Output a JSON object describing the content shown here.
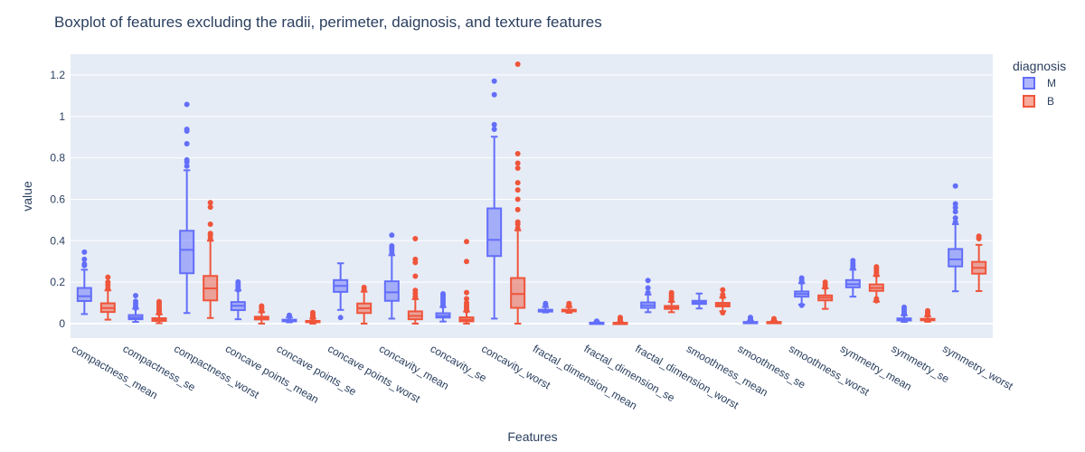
{
  "chart_data": {
    "type": "box",
    "title": "Boxplot of features excluding the radii, perimeter, daignosis, and texture features",
    "xlabel": "Features",
    "ylabel": "value",
    "ylim": [
      -0.07,
      1.3
    ],
    "yticks": [
      0,
      0.2,
      0.4,
      0.6,
      0.8,
      1,
      1.2
    ],
    "ytick_labels": [
      "0",
      "0.2",
      "0.4",
      "0.6",
      "0.8",
      "1",
      "1.2"
    ],
    "grid": true,
    "legend": {
      "title": "diagnosis",
      "position": "top-right"
    },
    "categories": [
      "compactness_mean",
      "compactness_se",
      "compactness_worst",
      "concave points_mean",
      "concave points_se",
      "concave points_worst",
      "concavity_mean",
      "concavity_se",
      "concavity_worst",
      "fractal_dimension_mean",
      "fractal_dimension_se",
      "fractal_dimension_worst",
      "smoothness_mean",
      "smoothness_se",
      "smoothness_worst",
      "symmetry_mean",
      "symmetry_se",
      "symmetry_worst"
    ],
    "series": [
      {
        "name": "M",
        "color": "#636efa",
        "boxes": [
          {
            "min": 0.046,
            "q1": 0.109,
            "median": 0.132,
            "q3": 0.172,
            "max": 0.26,
            "outliers": [
              0.28,
              0.287,
              0.31,
              0.345
            ]
          },
          {
            "min": 0.008,
            "q1": 0.021,
            "median": 0.029,
            "q3": 0.041,
            "max": 0.072,
            "outliers": [
              0.075,
              0.082,
              0.095,
              0.107,
              0.135
            ]
          },
          {
            "min": 0.051,
            "q1": 0.243,
            "median": 0.356,
            "q3": 0.448,
            "max": 0.74,
            "outliers": [
              0.76,
              0.78,
              0.79,
              0.868,
              0.929,
              0.938,
              1.058
            ]
          },
          {
            "min": 0.021,
            "q1": 0.065,
            "median": 0.086,
            "q3": 0.104,
            "max": 0.16,
            "outliers": [
              0.163,
              0.17,
              0.18,
              0.19,
              0.201
            ]
          },
          {
            "min": 0.006,
            "q1": 0.011,
            "median": 0.015,
            "q3": 0.019,
            "max": 0.03,
            "outliers": [
              0.035,
              0.04
            ]
          },
          {
            "min": 0.066,
            "q1": 0.153,
            "median": 0.182,
            "q3": 0.21,
            "max": 0.291,
            "outliers": [
              0.029
            ]
          },
          {
            "min": 0.024,
            "q1": 0.11,
            "median": 0.151,
            "q3": 0.204,
            "max": 0.33,
            "outliers": [
              0.34,
              0.355,
              0.365,
              0.375,
              0.427
            ]
          },
          {
            "min": 0.01,
            "q1": 0.029,
            "median": 0.037,
            "q3": 0.05,
            "max": 0.08,
            "outliers": [
              0.085,
              0.095,
              0.105,
              0.115,
              0.125,
              0.135,
              0.144
            ]
          },
          {
            "min": 0.024,
            "q1": 0.326,
            "median": 0.404,
            "q3": 0.556,
            "max": 0.902,
            "outliers": [
              0.938,
              0.96,
              1.105,
              1.17
            ]
          },
          {
            "min": 0.054,
            "q1": 0.058,
            "median": 0.062,
            "q3": 0.067,
            "max": 0.08,
            "outliers": [
              0.09,
              0.097
            ]
          },
          {
            "min": 0.001,
            "q1": 0.0025,
            "median": 0.0035,
            "q3": 0.0045,
            "max": 0.008,
            "outliers": [
              0.01,
              0.012
            ]
          },
          {
            "min": 0.055,
            "q1": 0.076,
            "median": 0.088,
            "q3": 0.102,
            "max": 0.14,
            "outliers": [
              0.15,
              0.172,
              0.208
            ]
          },
          {
            "min": 0.073,
            "q1": 0.095,
            "median": 0.102,
            "q3": 0.11,
            "max": 0.145,
            "outliers": []
          },
          {
            "min": 0.002,
            "q1": 0.005,
            "median": 0.006,
            "q3": 0.008,
            "max": 0.014,
            "outliers": [
              0.016,
              0.02,
              0.025,
              0.03
            ]
          },
          {
            "min": 0.092,
            "q1": 0.13,
            "median": 0.143,
            "q3": 0.155,
            "max": 0.195,
            "outliers": [
              0.088,
              0.2,
              0.21,
              0.22
            ]
          },
          {
            "min": 0.13,
            "q1": 0.175,
            "median": 0.19,
            "q3": 0.21,
            "max": 0.26,
            "outliers": [
              0.27,
              0.28,
              0.29,
              0.304
            ]
          },
          {
            "min": 0.008,
            "q1": 0.015,
            "median": 0.019,
            "q3": 0.025,
            "max": 0.04,
            "outliers": [
              0.045,
              0.05,
              0.06,
              0.07,
              0.079
            ]
          },
          {
            "min": 0.156,
            "q1": 0.276,
            "median": 0.31,
            "q3": 0.36,
            "max": 0.48,
            "outliers": [
              0.49,
              0.51,
              0.54,
              0.56,
              0.578,
              0.664
            ]
          }
        ]
      },
      {
        "name": "B",
        "color": "#ef553b",
        "boxes": [
          {
            "min": 0.019,
            "q1": 0.056,
            "median": 0.075,
            "q3": 0.098,
            "max": 0.16,
            "outliers": [
              0.17,
              0.185,
              0.2,
              0.224
            ]
          },
          {
            "min": 0.002,
            "q1": 0.013,
            "median": 0.02,
            "q3": 0.026,
            "max": 0.045,
            "outliers": [
              0.05,
              0.058,
              0.065,
              0.072,
              0.08,
              0.09,
              0.1,
              0.106
            ]
          },
          {
            "min": 0.027,
            "q1": 0.112,
            "median": 0.17,
            "q3": 0.23,
            "max": 0.4,
            "outliers": [
              0.41,
              0.425,
              0.435,
              0.48,
              0.562,
              0.584
            ]
          },
          {
            "min": 0.0,
            "q1": 0.02,
            "median": 0.026,
            "q3": 0.033,
            "max": 0.055,
            "outliers": [
              0.06,
              0.07,
              0.08,
              0.085
            ]
          },
          {
            "min": 0.0,
            "q1": 0.007,
            "median": 0.01,
            "q3": 0.013,
            "max": 0.024,
            "outliers": [
              0.027,
              0.033,
              0.04,
              0.048,
              0.053
            ]
          },
          {
            "min": 0.0,
            "q1": 0.051,
            "median": 0.074,
            "q3": 0.097,
            "max": 0.154,
            "outliers": [
              0.164,
              0.175
            ]
          },
          {
            "min": 0.0,
            "q1": 0.021,
            "median": 0.037,
            "q3": 0.059,
            "max": 0.118,
            "outliers": [
              0.13,
              0.145,
              0.16,
              0.229,
              0.295,
              0.31,
              0.41
            ]
          },
          {
            "min": 0.0,
            "q1": 0.011,
            "median": 0.019,
            "q3": 0.03,
            "max": 0.058,
            "outliers": [
              0.062,
              0.07,
              0.08,
              0.09,
              0.1,
              0.12,
              0.15,
              0.3,
              0.396
            ]
          },
          {
            "min": 0.0,
            "q1": 0.076,
            "median": 0.143,
            "q3": 0.22,
            "max": 0.45,
            "outliers": [
              0.46,
              0.48,
              0.49,
              0.55,
              0.6,
              0.645,
              0.68,
              0.75,
              0.774,
              0.82,
              1.252
            ]
          },
          {
            "min": 0.052,
            "q1": 0.059,
            "median": 0.063,
            "q3": 0.067,
            "max": 0.08,
            "outliers": [
              0.085,
              0.093,
              0.097
            ]
          },
          {
            "min": 0.0009,
            "q1": 0.002,
            "median": 0.003,
            "q3": 0.004,
            "max": 0.007,
            "outliers": [
              0.01,
              0.015,
              0.02,
              0.025,
              0.03
            ]
          },
          {
            "min": 0.055,
            "q1": 0.071,
            "median": 0.077,
            "q3": 0.085,
            "max": 0.105,
            "outliers": [
              0.11,
              0.12,
              0.13,
              0.14,
              0.149
            ]
          },
          {
            "min": 0.06,
            "q1": 0.083,
            "median": 0.091,
            "q3": 0.1,
            "max": 0.125,
            "outliers": [
              0.052,
              0.13,
              0.14,
              0.163
            ]
          },
          {
            "min": 0.002,
            "q1": 0.005,
            "median": 0.0065,
            "q3": 0.008,
            "max": 0.013,
            "outliers": [
              0.015,
              0.018,
              0.021,
              0.024
            ]
          },
          {
            "min": 0.071,
            "q1": 0.112,
            "median": 0.125,
            "q3": 0.136,
            "max": 0.17,
            "outliers": [
              0.175,
              0.185,
              0.2
            ]
          },
          {
            "min": 0.106,
            "q1": 0.158,
            "median": 0.172,
            "q3": 0.189,
            "max": 0.23,
            "outliers": [
              0.11,
              0.12,
              0.235,
              0.245,
              0.255,
              0.265,
              0.274
            ]
          },
          {
            "min": 0.009,
            "q1": 0.016,
            "median": 0.019,
            "q3": 0.023,
            "max": 0.035,
            "outliers": [
              0.04,
              0.047,
              0.055,
              0.062
            ]
          },
          {
            "min": 0.157,
            "q1": 0.241,
            "median": 0.269,
            "q3": 0.298,
            "max": 0.38,
            "outliers": [
              0.41,
              0.415,
              0.422
            ]
          }
        ]
      }
    ]
  }
}
